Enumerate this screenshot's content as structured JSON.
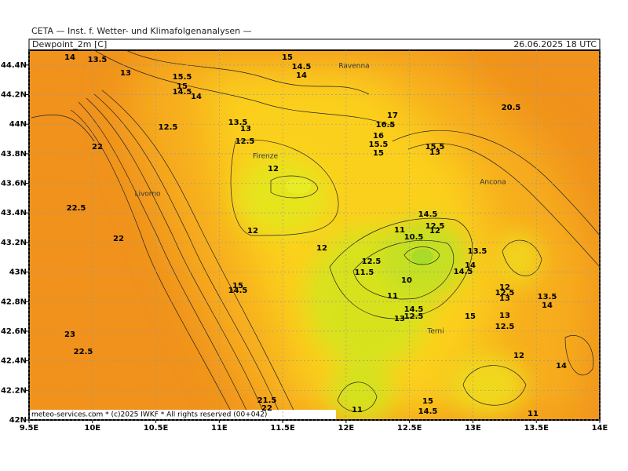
{
  "header": {
    "institute": "CETA — Inst. f. Wetter- und Klimafolgenanalysen —",
    "field": "Dewpoint_2m [C]",
    "valid_time": "26.06.2025 18 UTC"
  },
  "map": {
    "xlim": [
      9.5,
      14
    ],
    "ylim": [
      42,
      44.5
    ],
    "xticks": [
      {
        "value": 9.5,
        "label": "9.5E"
      },
      {
        "value": 10,
        "label": "10E"
      },
      {
        "value": 10.5,
        "label": "10.5E"
      },
      {
        "value": 11,
        "label": "11E"
      },
      {
        "value": 11.5,
        "label": "11.5E"
      },
      {
        "value": 12,
        "label": "12E"
      },
      {
        "value": 12.5,
        "label": "12.5E"
      },
      {
        "value": 13,
        "label": "13E"
      },
      {
        "value": 13.5,
        "label": "13.5E"
      },
      {
        "value": 14,
        "label": "14E"
      }
    ],
    "yticks": [
      {
        "value": 42,
        "label": "42N"
      },
      {
        "value": 42.2,
        "label": "42.2N"
      },
      {
        "value": 42.4,
        "label": "42.4N"
      },
      {
        "value": 42.6,
        "label": "42.6N"
      },
      {
        "value": 42.8,
        "label": "42.8N"
      },
      {
        "value": 43,
        "label": "43N"
      },
      {
        "value": 43.2,
        "label": "43.2N"
      },
      {
        "value": 43.4,
        "label": "43.4N"
      },
      {
        "value": 43.6,
        "label": "43.6N"
      },
      {
        "value": 43.8,
        "label": "43.8N"
      },
      {
        "value": 44,
        "label": "44N"
      },
      {
        "value": 44.2,
        "label": "44.2N"
      },
      {
        "value": 44.4,
        "label": "44.4N"
      }
    ],
    "cities": [
      "Ravenna",
      "Firenze",
      "Livorno",
      "Ancona",
      "Terni"
    ],
    "contour_labels": [
      14,
      13.5,
      13,
      15,
      14.5,
      14,
      15.5,
      15,
      14.5,
      14,
      12.5,
      13.5,
      13,
      12.5,
      12,
      17,
      16.5,
      16,
      15.5,
      15,
      20.5,
      15.5,
      13,
      22,
      22.5,
      22,
      14.5,
      12.5,
      12,
      12,
      12,
      11,
      10.5,
      12.5,
      11.5,
      10,
      13.5,
      14,
      14.5,
      15,
      14.5,
      12,
      12.5,
      13,
      13.5,
      14,
      11,
      14.5,
      13,
      12.5,
      15,
      13,
      12.5,
      23,
      22.5,
      12,
      14,
      21.5,
      22,
      15,
      14.5,
      11,
      11
    ],
    "footer": "meteo-services.com * (c)2025 IWKF * All rights reserved (00+042)"
  }
}
